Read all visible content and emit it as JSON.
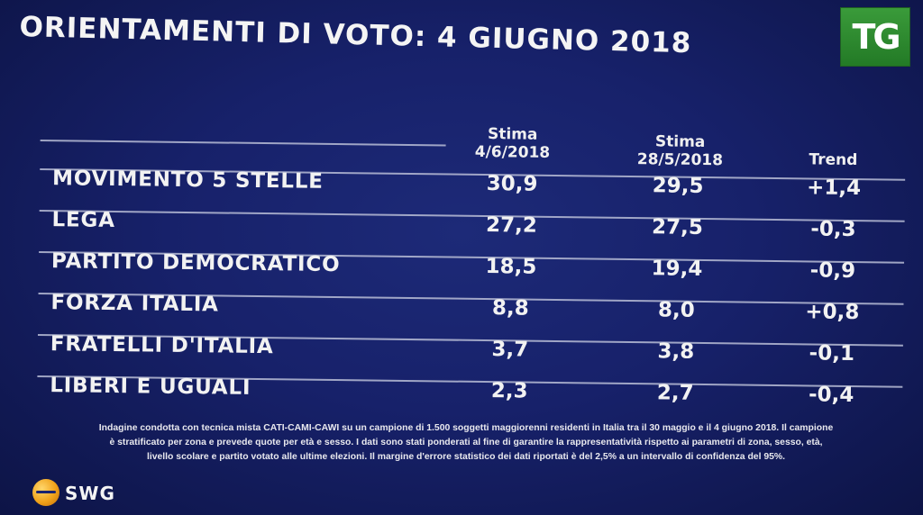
{
  "title": "ORIENTAMENTI DI VOTO: 4 GIUGNO 2018",
  "logo": {
    "text": "TG",
    "color": "#2e8b2e"
  },
  "chart_data": {
    "type": "table",
    "columns": [
      "Stima 4/6/2018",
      "Stima 28/5/2018",
      "Trend"
    ],
    "rows": [
      {
        "party": "MOVIMENTO 5 STELLE",
        "stima_1": "30,9",
        "stima_2": "29,5",
        "trend": "+1,4"
      },
      {
        "party": "LEGA",
        "stima_1": "27,2",
        "stima_2": "27,5",
        "trend": "-0,3"
      },
      {
        "party": "PARTITO DEMOCRATICO",
        "stima_1": "18,5",
        "stima_2": "19,4",
        "trend": "-0,9"
      },
      {
        "party": "FORZA ITALIA",
        "stima_1": "8,8",
        "stima_2": "8,0",
        "trend": "+0,8"
      },
      {
        "party": "FRATELLI D'ITALIA",
        "stima_1": "3,7",
        "stima_2": "3,8",
        "trend": "-0,1"
      },
      {
        "party": "LIBERI E UGUALI",
        "stima_1": "2,3",
        "stima_2": "2,7",
        "trend": "-0,4"
      }
    ]
  },
  "headers": {
    "col1_line1": "Stima",
    "col1_line2": "4/6/2018",
    "col2_line1": "Stima",
    "col2_line2": "28/5/2018",
    "col3": "Trend"
  },
  "footnote": {
    "line1": "Indagine condotta con tecnica mista CATI-CAMI-CAWI su un campione di 1.500 soggetti maggiorenni residenti in Italia tra il 30 maggio e il 4 giugno 2018. Il campione",
    "line2": "è stratificato per zona e prevede quote per età e sesso. I dati sono stati ponderati al fine di garantire la rappresentatività rispetto ai parametri di zona, sesso, età,",
    "line3": "livello scolare e partito votato alle ultime elezioni. Il margine d'errore statistico dei dati riportati è del 2,5% a un intervallo di confidenza del 95%."
  },
  "brand": {
    "name": "SWG",
    "globe_color": "#f0a21a"
  },
  "colors": {
    "background": "#17216a",
    "text": "#f2f2f2",
    "rule": "#b8bdd6"
  }
}
